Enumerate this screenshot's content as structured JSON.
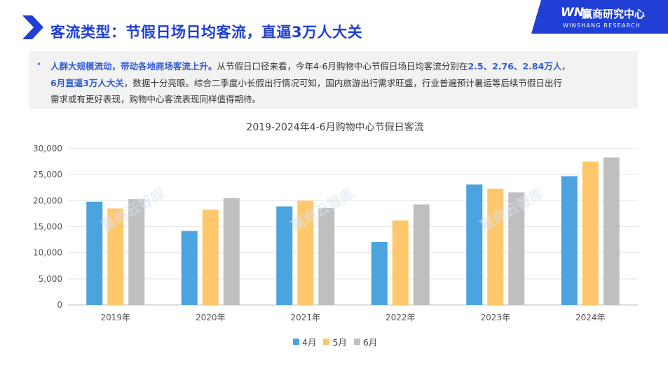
{
  "header": {
    "title": "客流类型：节假日场日均客流，直逼3万人大关",
    "logo_mark": "WN",
    "logo_name": "赢商研究中心",
    "logo_sub": "WINSHANG RESEARCH"
  },
  "note": {
    "line1_hl": "人群大规模流动，带动各地商场客流上升。",
    "line1_text": "从节假日口径来看，今年4-6月购物中心节假日场日均客流分别在",
    "line1_vals": "2.5、2.76、2.84万人",
    "line1_end": "，",
    "line2_hl": "6月直逼3万人大关",
    "line2_text": "，数据十分亮眼。综合二季度小长假出行情况可知，国内旅游出行需求旺盛，行业普遍预计暑运等后续节假日出行",
    "line3_text": "需求或有更好表现，购物中心客流表现同样值得期待。"
  },
  "watermark": "赢商云智库",
  "chart_data": {
    "type": "bar",
    "title": "2019-2024年4-6月购物中心节假日客流",
    "categories": [
      "2019年",
      "2020年",
      "2021年",
      "2022年",
      "2023年",
      "2024年"
    ],
    "series": [
      {
        "name": "4月",
        "color": "#4ba3df",
        "values": [
          19800,
          14200,
          18900,
          12100,
          23100,
          24700
        ]
      },
      {
        "name": "5月",
        "color": "#ffc76b",
        "values": [
          18500,
          18300,
          20000,
          16200,
          22300,
          27500
        ]
      },
      {
        "name": "6月",
        "color": "#bfbfbf",
        "values": [
          20300,
          20500,
          18600,
          19300,
          21600,
          28300
        ]
      }
    ],
    "ylim": [
      0,
      30000
    ],
    "yticks": [
      0,
      5000,
      10000,
      15000,
      20000,
      25000,
      30000
    ],
    "ytick_labels": [
      "0",
      "5,000",
      "10,000",
      "15,000",
      "20,000",
      "25,000",
      "30,000"
    ],
    "grid": true,
    "legend": "bottom"
  }
}
